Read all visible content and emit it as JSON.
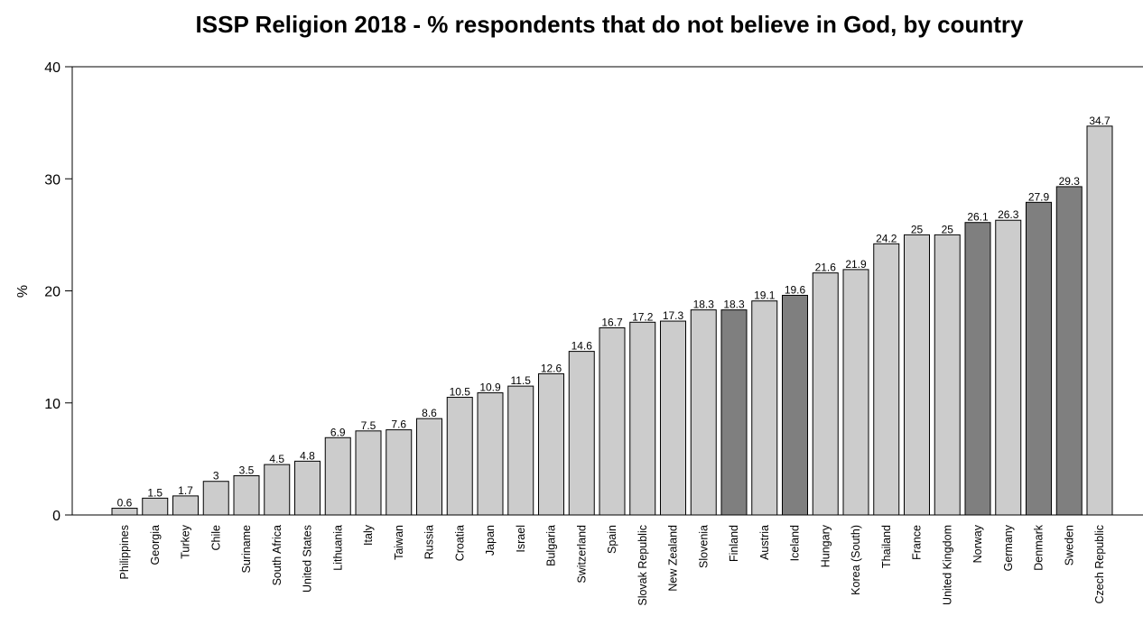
{
  "chart_data": {
    "type": "bar",
    "title": "ISSP Religion 2018 - % respondents that do not believe in God, by country",
    "xlabel": "",
    "ylabel": "%",
    "ylim": [
      0,
      40
    ],
    "yticks": [
      0,
      10,
      20,
      30,
      40
    ],
    "grid": false,
    "categories": [
      "Philippines",
      "Georgia",
      "Turkey",
      "Chile",
      "Suriname",
      "South Africa",
      "United States",
      "Lithuania",
      "Italy",
      "Taiwan",
      "Russia",
      "Croatia",
      "Japan",
      "Israel",
      "Bulgaria",
      "Switzerland",
      "Spain",
      "Slovak Republic",
      "New Zealand",
      "Slovenia",
      "Finland",
      "Austria",
      "Iceland",
      "Hungary",
      "Korea (South)",
      "Thailand",
      "France",
      "United Kingdom",
      "Norway",
      "Germany",
      "Denmark",
      "Sweden",
      "Czech Republic"
    ],
    "values": [
      0.6,
      1.5,
      1.7,
      3,
      3.5,
      4.5,
      4.8,
      6.9,
      7.5,
      7.6,
      8.6,
      10.5,
      10.9,
      11.5,
      12.6,
      14.6,
      16.7,
      17.2,
      17.3,
      18.3,
      18.3,
      19.1,
      19.6,
      21.6,
      21.9,
      24.2,
      25,
      25,
      26.1,
      26.3,
      27.9,
      29.3,
      34.7
    ],
    "value_labels": [
      "0.6",
      "1.5",
      "1.7",
      "3",
      "3.5",
      "4.5",
      "4.8",
      "6.9",
      "7.5",
      "7.6",
      "8.6",
      "10.5",
      "10.9",
      "11.5",
      "12.6",
      "14.6",
      "16.7",
      "17.2",
      "17.3",
      "18.3",
      "18.3",
      "19.1",
      "19.6",
      "21.6",
      "21.9",
      "24.2",
      "25",
      "25",
      "26.1",
      "26.3",
      "27.9",
      "29.3",
      "34.7"
    ],
    "highlighted": [
      "Finland",
      "Iceland",
      "Norway",
      "Denmark",
      "Sweden"
    ],
    "colors": {
      "bar": "#cccccc",
      "highlight": "#7f7f7f",
      "outline": "#000000"
    }
  }
}
